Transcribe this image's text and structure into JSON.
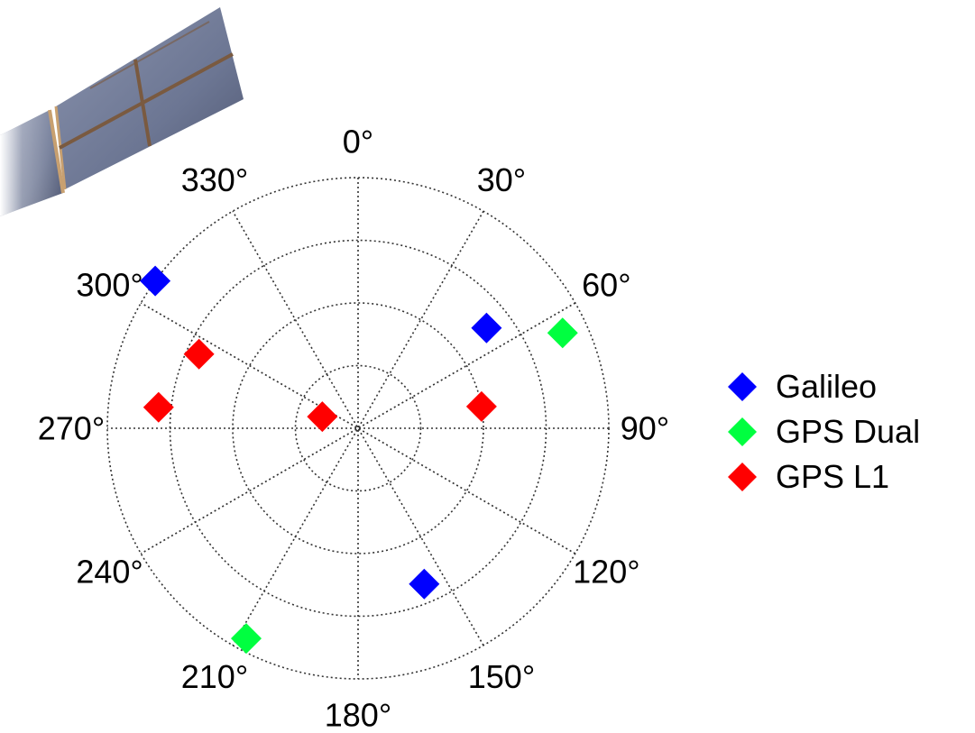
{
  "chart_data": {
    "type": "scatter",
    "projection": "polar",
    "angle_zero": "top",
    "angle_direction": "clockwise",
    "angle_ticks": [
      "0°",
      "30°",
      "60°",
      "90°",
      "120°",
      "150°",
      "180°",
      "210°",
      "240°",
      "270°",
      "300°",
      "330°"
    ],
    "radial_rings": [
      1,
      2,
      3,
      4
    ],
    "r_max": 4,
    "grid": "dotted",
    "legend_placement": "right",
    "marker": "diamond",
    "series": [
      {
        "name": "Galileo",
        "color": "#0000ff",
        "points": [
          {
            "angle": 306,
            "r": 4.0
          },
          {
            "angle": 52,
            "r": 2.6
          },
          {
            "angle": 157,
            "r": 2.7
          }
        ]
      },
      {
        "name": "GPS Dual",
        "color": "#00ff40",
        "points": [
          {
            "angle": 65,
            "r": 3.6
          },
          {
            "angle": 208,
            "r": 3.8
          }
        ]
      },
      {
        "name": "GPS L1",
        "color": "#ff0000",
        "points": [
          {
            "angle": 295,
            "r": 2.8
          },
          {
            "angle": 276,
            "r": 3.2
          },
          {
            "angle": 288,
            "r": 0.6
          },
          {
            "angle": 80,
            "r": 2.0
          }
        ]
      }
    ]
  },
  "decoration": {
    "satellite": "solar-panel-image"
  }
}
